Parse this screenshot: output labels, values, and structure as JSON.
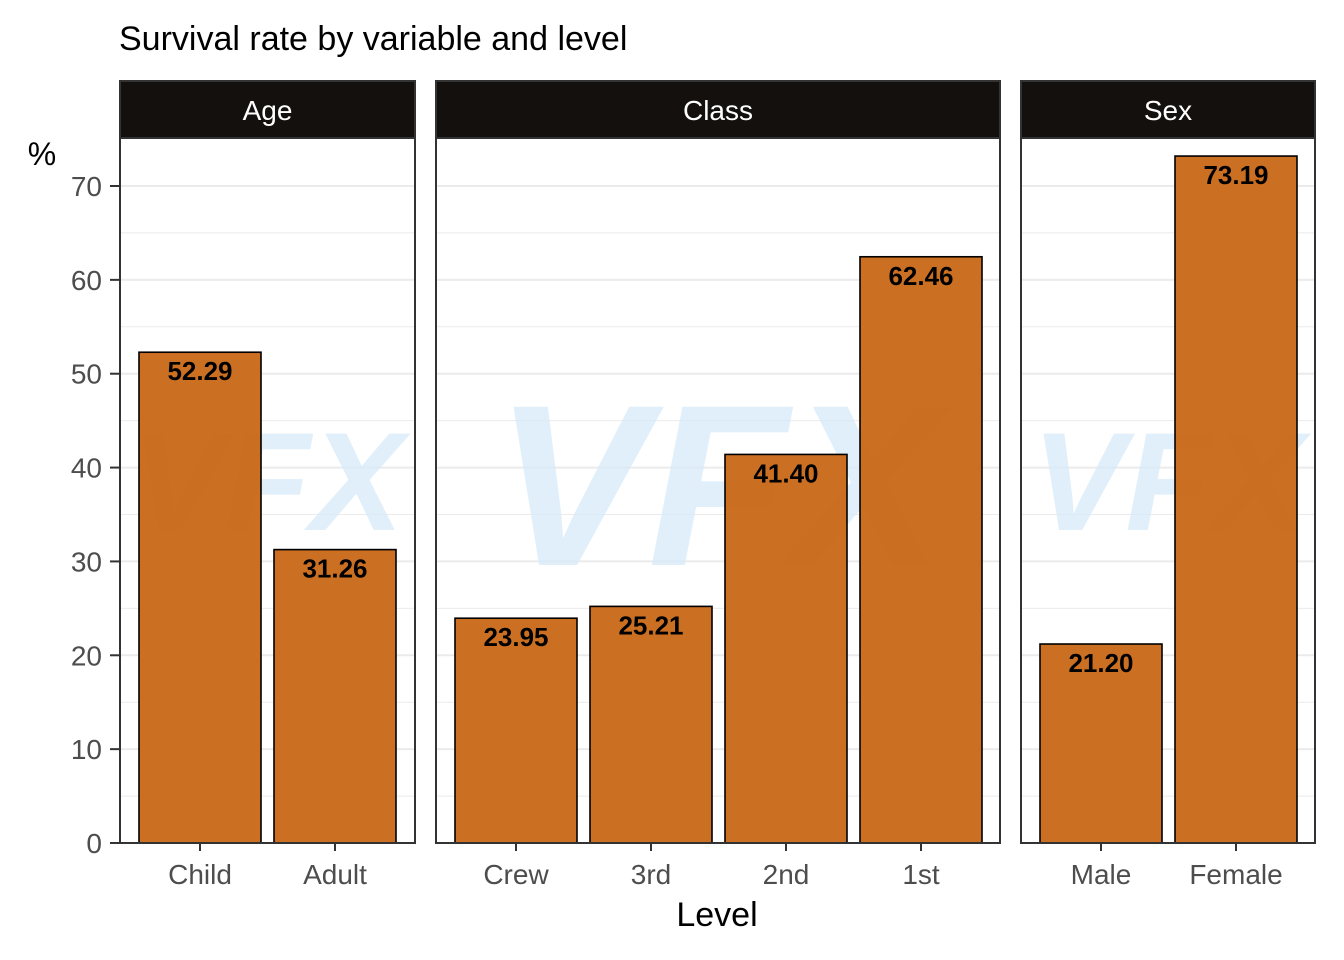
{
  "title": "Survival rate by variable and level",
  "watermark": "VFX",
  "colors": {
    "bar_fill": "#C96A1B",
    "bar_stroke": "#000000",
    "strip_fill": "#14100D",
    "strip_text": "#FFFFFF",
    "grid": "#EBEBEB",
    "axis_text": "#4D4D4D",
    "watermark": "#D6EAF8"
  },
  "chart_data": {
    "type": "bar",
    "title": "Survival rate by variable and level",
    "xlabel": "Level",
    "ylabel": "%",
    "ylim": [
      0,
      75
    ],
    "yticks": [
      0,
      10,
      20,
      30,
      40,
      50,
      60,
      70
    ],
    "grid": true,
    "legend": "none",
    "facets": [
      {
        "name": "Age",
        "categories": [
          "Child",
          "Adult"
        ],
        "values": [
          52.29,
          31.26
        ],
        "labels": [
          "52.29",
          "31.26"
        ]
      },
      {
        "name": "Class",
        "categories": [
          "Crew",
          "3rd",
          "2nd",
          "1st"
        ],
        "values": [
          23.95,
          25.21,
          41.4,
          62.46
        ],
        "labels": [
          "23.95",
          "25.21",
          "41.40",
          "62.46"
        ]
      },
      {
        "name": "Sex",
        "categories": [
          "Male",
          "Female"
        ],
        "values": [
          21.2,
          73.19
        ],
        "labels": [
          "21.20",
          "73.19"
        ]
      }
    ]
  }
}
